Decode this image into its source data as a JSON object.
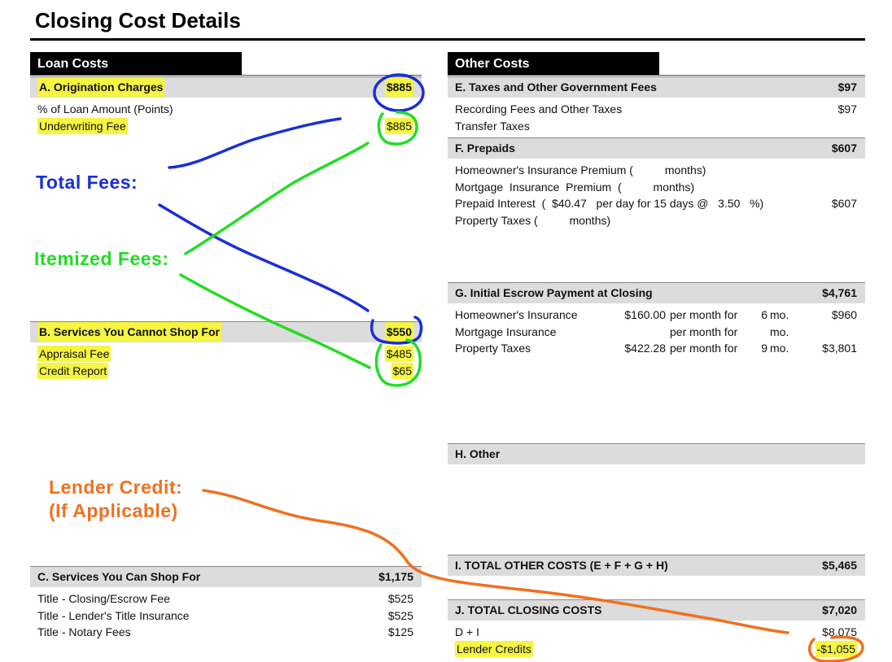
{
  "page": {
    "title": "Closing Cost Details"
  },
  "loan_costs": {
    "tab": "Loan Costs",
    "a": {
      "label": "A. Origination Charges",
      "total": "$885",
      "items": [
        {
          "label": "% of Loan Amount (Points)",
          "amount": ""
        },
        {
          "label": "Underwriting Fee",
          "amount": "$885"
        }
      ]
    },
    "b": {
      "label": "B. Services You Cannot Shop For",
      "total": "$550",
      "items": [
        {
          "label": "Appraisal Fee",
          "amount": "$485"
        },
        {
          "label": "Credit Report",
          "amount": "$65"
        }
      ]
    },
    "c": {
      "label": "C. Services You Can Shop For",
      "total": "$1,175",
      "items": [
        {
          "label": "Title - Closing/Escrow Fee",
          "amount": "$525"
        },
        {
          "label": "Title - Lender's Title Insurance",
          "amount": "$525"
        },
        {
          "label": "Title - Notary Fees",
          "amount": "$125"
        }
      ]
    }
  },
  "other_costs": {
    "tab": "Other Costs",
    "e": {
      "label": "E. Taxes and Other Government Fees",
      "total": "$97",
      "items": [
        {
          "label": "Recording Fees and Other Taxes",
          "amount": "$97"
        },
        {
          "label": "Transfer Taxes",
          "amount": ""
        }
      ]
    },
    "f": {
      "label": "F. Prepaids",
      "total": "$607",
      "items": [
        {
          "label": "Homeowner's Insurance Premium (          months)",
          "amount": ""
        },
        {
          "label": "Mortgage  Insurance  Premium  (          months)",
          "amount": ""
        },
        {
          "label": "Prepaid Interest  (  $40.47   per day for 15 days @   3.50   %)",
          "amount": "$607"
        },
        {
          "label": "Property Taxes (          months)",
          "amount": ""
        }
      ]
    },
    "g": {
      "label": "G. Initial Escrow Payment at Closing",
      "total": "$4,761",
      "items": [
        {
          "label": "Homeowner's Insurance",
          "rate": "$160.00",
          "per": "per month for",
          "months": "6",
          "unit": "mo.",
          "amount": "$960"
        },
        {
          "label": "Mortgage Insurance",
          "rate": "",
          "per": "per month for",
          "months": "",
          "unit": "mo.",
          "amount": ""
        },
        {
          "label": "Property Taxes",
          "rate": "$422.28",
          "per": "per month for",
          "months": "9",
          "unit": "mo.",
          "amount": "$3,801"
        }
      ]
    },
    "h": {
      "label": "H. Other",
      "total": ""
    },
    "i": {
      "label": "I. TOTAL OTHER COSTS (E + F + G + H)",
      "total": "$5,465"
    },
    "j": {
      "label": "J. TOTAL CLOSING COSTS",
      "total": "$7,020",
      "items": [
        {
          "label": "D + I",
          "amount": "$8,075"
        },
        {
          "label": "Lender Credits",
          "amount": "-$1,055"
        }
      ]
    }
  },
  "annotations": {
    "total_fees": "Total Fees:",
    "itemized_fees": "Itemized Fees:",
    "lender_credit_1": "Lender Credit:",
    "lender_credit_2": "(If Applicable)",
    "colors": {
      "total": "#1a2fd6",
      "itemized": "#22dd22",
      "lender": "#f07020",
      "highlight": "#f5f542"
    }
  }
}
